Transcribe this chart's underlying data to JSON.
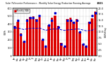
{
  "title": "Solar PV/Inverter Performance - Monthly Solar Energy Production Running Average",
  "title2": "2021",
  "months": [
    "Jan",
    "Feb",
    "Mar",
    "Apr",
    "May",
    "Jun",
    "Jul",
    "Aug",
    "Sep",
    "Oct",
    "Nov",
    "Dec",
    "Jan",
    "Feb",
    "Mar",
    "Apr",
    "May",
    "Jun",
    "Jul",
    "Aug",
    "Sep",
    "Oct",
    "Nov",
    "Dec",
    "Jan",
    "Feb",
    "Mar"
  ],
  "values": [
    380,
    430,
    280,
    180,
    460,
    490,
    500,
    460,
    500,
    200,
    120,
    390,
    480,
    510,
    380,
    160,
    110,
    460,
    480,
    430,
    460,
    300,
    150,
    120,
    430,
    470,
    560
  ],
  "running_avg": [
    350,
    350,
    340,
    330,
    340,
    345,
    348,
    345,
    350,
    335,
    320,
    330,
    335,
    338,
    335,
    328,
    320,
    325,
    330,
    332,
    338,
    335,
    325,
    315,
    318,
    322,
    340
  ],
  "daily_values": [
    12,
    15,
    9,
    6,
    15,
    16,
    16,
    15,
    17,
    7,
    4,
    13,
    15,
    18,
    12,
    5,
    4,
    15,
    15,
    14,
    15,
    10,
    5,
    4,
    14,
    17,
    18
  ],
  "bar_color": "#dd0000",
  "avg_color": "#0000cc",
  "daily_color": "#0000cc",
  "bg_color": "#ffffff",
  "ylim_left": [
    0,
    600
  ],
  "ylim_right": [
    0,
    20
  ],
  "grid_color": "#888888"
}
